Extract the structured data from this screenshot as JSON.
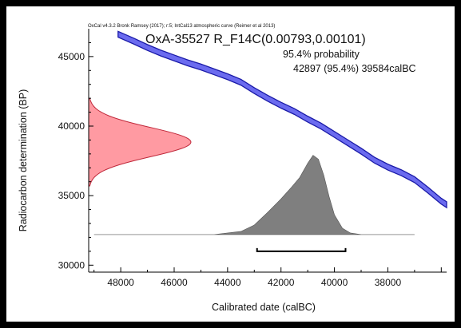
{
  "credit": "OxCal v4.3.2 Bronk Ramsey (2017); r:5; IntCal13 atmospheric curve (Reimer et al 2013)",
  "chart_data": {
    "type": "area",
    "title": "OxA-35527 R_F14C(0.00793,0.00101)",
    "probability_label": "95.4% probability",
    "range_label": "42897 (95.4%) 39584calBC",
    "xlabel": "Calibrated date (calBC)",
    "ylabel": "Radiocarbon determination (BP)",
    "xlim": [
      49200,
      35800
    ],
    "ylim": [
      29500,
      47000
    ],
    "x_ticks": [
      48000,
      46000,
      44000,
      42000,
      40000,
      38000
    ],
    "y_ticks": [
      30000,
      35000,
      40000,
      45000
    ],
    "calibration_curve": {
      "name": "IntCal13",
      "color": "#6b6bef",
      "points": [
        [
          48100,
          46600
        ],
        [
          47500,
          46100
        ],
        [
          47000,
          45650
        ],
        [
          46500,
          45250
        ],
        [
          46000,
          44900
        ],
        [
          45500,
          44550
        ],
        [
          45000,
          44250
        ],
        [
          44500,
          43900
        ],
        [
          44000,
          43550
        ],
        [
          43500,
          43150
        ],
        [
          43000,
          42550
        ],
        [
          42500,
          42000
        ],
        [
          42000,
          41500
        ],
        [
          41500,
          41050
        ],
        [
          41000,
          40500
        ],
        [
          40500,
          40000
        ],
        [
          40000,
          39400
        ],
        [
          39500,
          38800
        ],
        [
          39000,
          38200
        ],
        [
          38500,
          37550
        ],
        [
          38000,
          37050
        ],
        [
          37500,
          36650
        ],
        [
          37000,
          36150
        ],
        [
          36500,
          35400
        ],
        [
          36000,
          34600
        ],
        [
          35800,
          34350
        ]
      ],
      "band_width": 420
    },
    "radiocarbon_distribution": {
      "color": "#ff9aa2",
      "mean": 38850,
      "sd": 1050,
      "peak_value": 1.0
    },
    "calibrated_distribution": {
      "color": "#7f7f7f",
      "points": [
        [
          49000,
          0
        ],
        [
          44500,
          0
        ],
        [
          43500,
          0.04
        ],
        [
          43000,
          0.12
        ],
        [
          42500,
          0.28
        ],
        [
          42000,
          0.45
        ],
        [
          41600,
          0.6
        ],
        [
          41300,
          0.72
        ],
        [
          41000,
          0.9
        ],
        [
          40800,
          1.0
        ],
        [
          40600,
          0.95
        ],
        [
          40400,
          0.75
        ],
        [
          40200,
          0.48
        ],
        [
          40000,
          0.25
        ],
        [
          39700,
          0.08
        ],
        [
          39400,
          0.02
        ],
        [
          39000,
          0
        ],
        [
          37000,
          0
        ]
      ],
      "baseline_bp": 32200,
      "peak_bp": 37900
    },
    "range_bar": {
      "from": 42897,
      "to": 39584,
      "probability": 95.4,
      "bar_bp": 31000
    }
  }
}
